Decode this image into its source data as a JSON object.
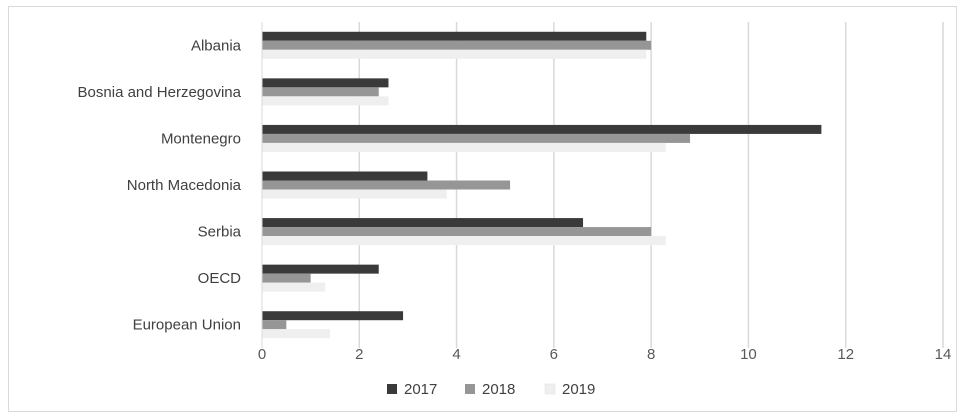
{
  "chart_data": {
    "type": "bar",
    "orientation": "horizontal",
    "categories": [
      "Albania",
      "Bosnia and Herzegovina",
      "Montenegro",
      "North Macedonia",
      "Serbia",
      "OECD",
      "European Union"
    ],
    "series": [
      {
        "name": "2017",
        "color": "#3a3a3a",
        "values": [
          7.9,
          2.6,
          11.5,
          3.4,
          6.6,
          2.4,
          2.9
        ]
      },
      {
        "name": "2018",
        "color": "#969696",
        "values": [
          8.0,
          2.4,
          8.8,
          5.1,
          8.0,
          1.0,
          0.5
        ]
      },
      {
        "name": "2019",
        "color": "#efefef",
        "values": [
          7.9,
          2.6,
          8.3,
          3.8,
          8.3,
          1.3,
          1.4
        ]
      }
    ],
    "xlim": [
      0,
      14
    ],
    "xticks": [
      0,
      2,
      4,
      6,
      8,
      10,
      12,
      14
    ],
    "grid": "vertical",
    "legend": "bottom",
    "title": "",
    "xlabel": "",
    "ylabel": ""
  }
}
